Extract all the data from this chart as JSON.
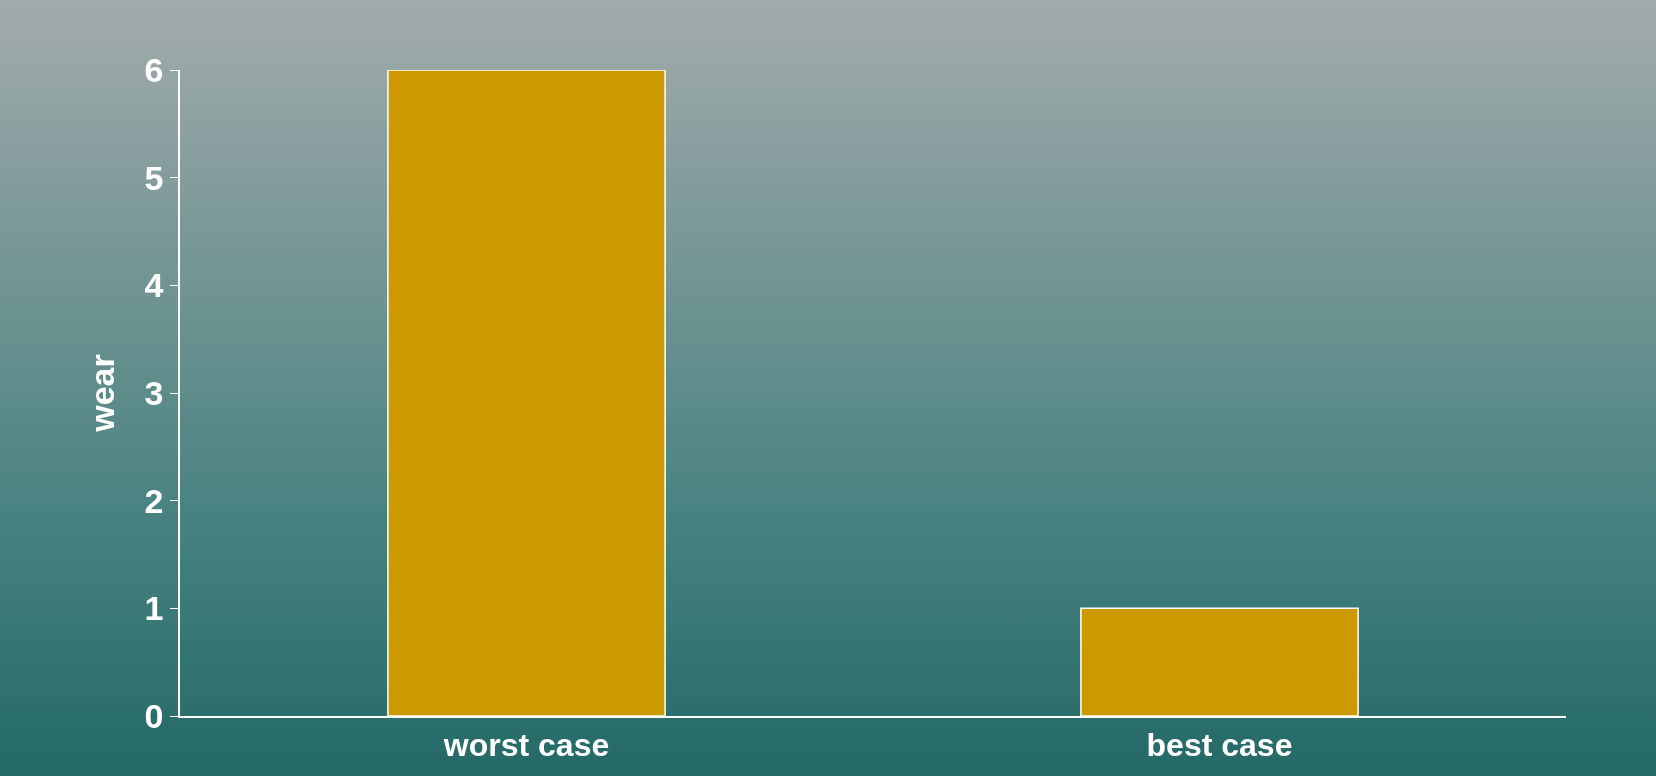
{
  "chart_data": {
    "type": "bar",
    "ylabel": "wear",
    "categories": [
      "worst case",
      "best case"
    ],
    "values": [
      6,
      1
    ],
    "color": "#cc9900",
    "ylim": [
      0,
      6
    ],
    "yticks": [
      0,
      1,
      2,
      3,
      4,
      5,
      6
    ],
    "grid": false
  }
}
